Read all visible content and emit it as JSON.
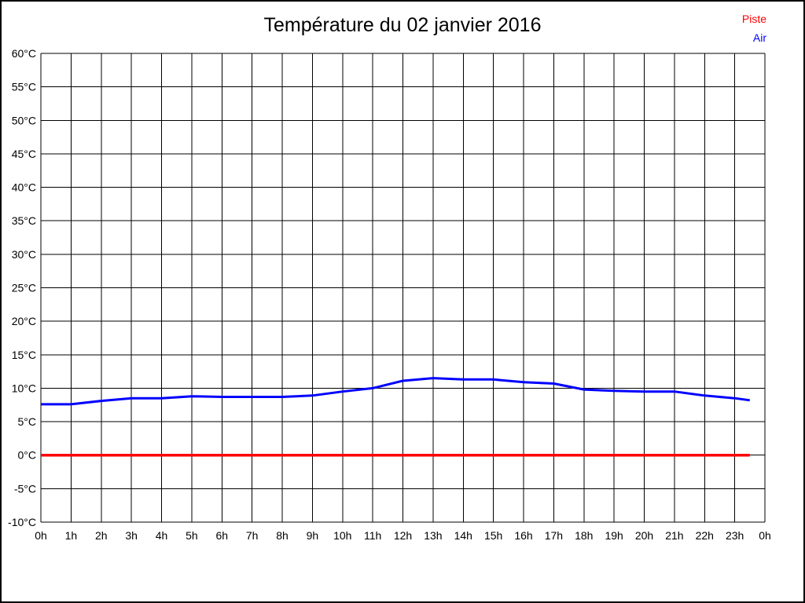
{
  "chart_data": {
    "type": "line",
    "title": "Température du 02 janvier 2016",
    "xlabel": "",
    "ylabel": "",
    "ylim": [
      -10,
      60
    ],
    "y_step": 5,
    "grid": true,
    "legend_position": "top-right",
    "y_tick_labels": [
      "60°C",
      "55°C",
      "50°C",
      "45°C",
      "40°C",
      "35°C",
      "30°C",
      "25°C",
      "20°C",
      "15°C",
      "10°C",
      "5°C",
      "0°C",
      "-5°C",
      "-10°C"
    ],
    "x_ticks": [
      "0h",
      "1h",
      "2h",
      "3h",
      "4h",
      "5h",
      "6h",
      "7h",
      "8h",
      "9h",
      "10h",
      "11h",
      "12h",
      "13h",
      "14h",
      "15h",
      "16h",
      "17h",
      "18h",
      "19h",
      "20h",
      "21h",
      "22h",
      "23h",
      "0h"
    ],
    "x_hours_max": 24,
    "series": [
      {
        "name": "Piste",
        "color": "#ff0000",
        "x": [
          0,
          1,
          2,
          3,
          4,
          5,
          6,
          7,
          8,
          9,
          10,
          11,
          12,
          13,
          14,
          15,
          16,
          17,
          18,
          19,
          20,
          21,
          22,
          23,
          23.5
        ],
        "values": [
          0.0,
          0.0,
          0.0,
          0.0,
          0.0,
          0.0,
          0.0,
          0.0,
          0.0,
          0.0,
          0.0,
          0.0,
          0.0,
          0.0,
          0.0,
          0.0,
          0.0,
          0.0,
          0.0,
          0.0,
          0.0,
          0.0,
          0.0,
          0.0,
          0.0
        ]
      },
      {
        "name": "Air",
        "color": "#0000ff",
        "x": [
          0,
          1,
          2,
          3,
          4,
          5,
          6,
          7,
          8,
          9,
          10,
          11,
          12,
          13,
          14,
          15,
          16,
          17,
          18,
          19,
          20,
          21,
          22,
          23,
          23.5
        ],
        "values": [
          7.6,
          7.6,
          8.1,
          8.5,
          8.5,
          8.8,
          8.7,
          8.7,
          8.7,
          8.9,
          9.5,
          10.0,
          11.1,
          11.5,
          11.3,
          11.3,
          10.9,
          10.7,
          9.8,
          9.6,
          9.5,
          9.5,
          8.9,
          8.5,
          8.2
        ]
      }
    ],
    "colors": {
      "grid": "#000000",
      "text": "#000000",
      "background": "#ffffff"
    }
  }
}
